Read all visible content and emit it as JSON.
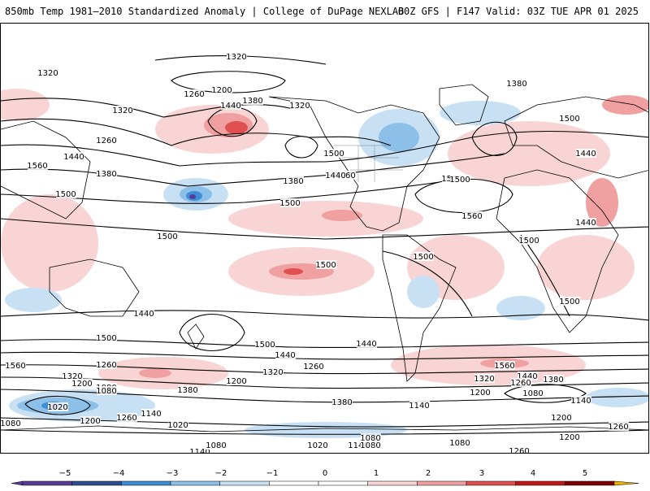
{
  "header": {
    "left_title": "850mb Temp 1981–2010 Standardized Anomaly | College of DuPage NEXLAB",
    "right_title": "00Z GFS | F147 Valid: 03Z TUE APR 01 2025"
  },
  "colors": {
    "neg5": "#5a3c96",
    "neg4": "#2a4d8f",
    "neg3": "#3c8fd6",
    "neg2": "#8cc0e8",
    "neg1": "#c8e0f4",
    "zero": "#ffffff",
    "pos1": "#f8d4d4",
    "pos2": "#f0a0a0",
    "pos3": "#e05050",
    "pos4": "#c01818",
    "pos5": "#800000",
    "over": "#f0b400",
    "coast": "#000000",
    "contour": "#000000"
  },
  "colorbar": {
    "ticks": [
      "−5",
      "−4",
      "−3",
      "−2",
      "−1",
      "0",
      "1",
      "2",
      "3",
      "4",
      "5"
    ]
  },
  "contour_labels": [
    "1320",
    "1320",
    "1200",
    "1260",
    "1440",
    "1380",
    "1320",
    "1380",
    "1500",
    "1440",
    "1320",
    "1260",
    "1440",
    "1380",
    "1500",
    "1560",
    "1500",
    "1560",
    "1500",
    "1380",
    "1440",
    "1500",
    "1500",
    "1560",
    "1440",
    "1500",
    "1500",
    "1500",
    "1500",
    "1500",
    "1440",
    "1500",
    "1440",
    "1560",
    "1260",
    "1320",
    "1200",
    "1080",
    "1020",
    "1260",
    "1200",
    "1080",
    "1140",
    "1020",
    "1080",
    "1200",
    "1320",
    "1260",
    "1380",
    "1440",
    "1500",
    "1380",
    "1140",
    "1080",
    "1020",
    "1140",
    "1080",
    "1080",
    "1200",
    "1260",
    "1320",
    "1440",
    "1560",
    "1260",
    "1380",
    "1200",
    "1080",
    "1140",
    "1200",
    "1260",
    "1140",
    "1080"
  ]
}
